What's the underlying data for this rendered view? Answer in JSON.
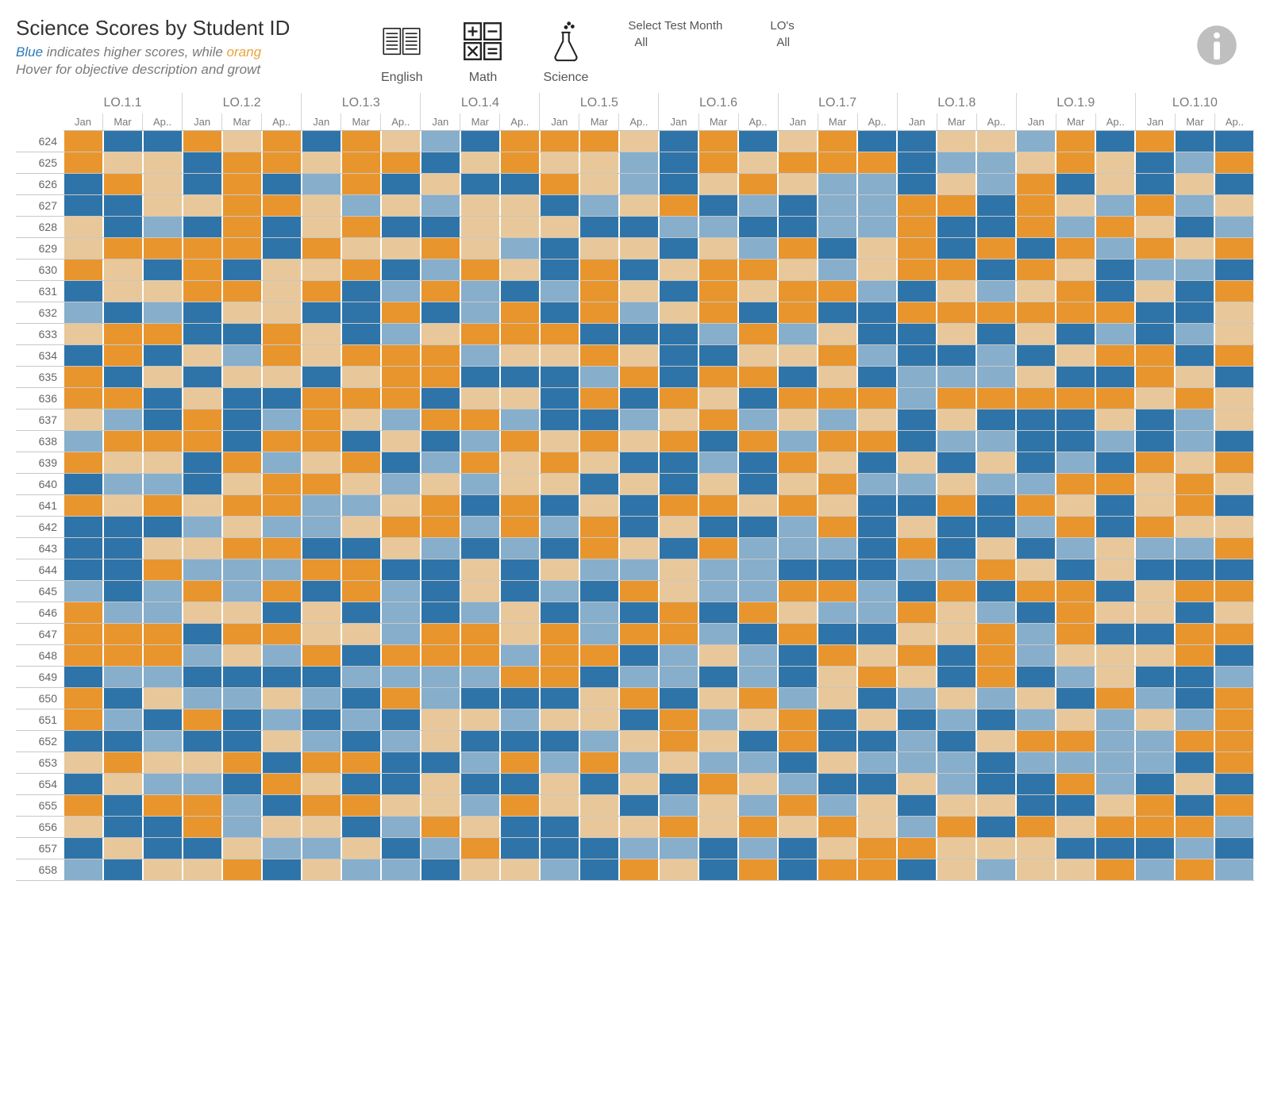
{
  "title": "Science Scores by Student ID",
  "subtitle": {
    "blue_word": "Blue",
    "mid1": " indicates higher scores, while ",
    "orange_word": "orang",
    "line2": "Hover for objective description and growt"
  },
  "subjects": [
    {
      "key": "english",
      "label": "English"
    },
    {
      "key": "math",
      "label": "Math"
    },
    {
      "key": "science",
      "label": "Science"
    }
  ],
  "filters": {
    "month": {
      "label": "Select Test Month",
      "value": "All"
    },
    "lo": {
      "label": "LO's",
      "value": "All"
    }
  },
  "heatmap": {
    "type": "heatmap",
    "lo_columns": [
      "LO.1.1",
      "LO.1.2",
      "LO.1.3",
      "LO.1.4",
      "LO.1.5",
      "LO.1.6",
      "LO.1.7",
      "LO.1.8",
      "LO.1.9",
      "LO.1.10"
    ],
    "months": [
      "Jan",
      "Mar",
      "Ap.."
    ],
    "student_ids": [
      "624",
      "625",
      "626",
      "627",
      "628",
      "629",
      "630",
      "631",
      "632",
      "633",
      "634",
      "635",
      "636",
      "637",
      "638",
      "639",
      "640",
      "641",
      "642",
      "643",
      "644",
      "645",
      "646",
      "647",
      "648",
      "649",
      "650",
      "651",
      "652",
      "653",
      "654",
      "655",
      "656",
      "657",
      "658"
    ],
    "palette": {
      "0": "#e8c89a",
      "1": "#e8952e",
      "2": "#87aecb",
      "3": "#2e74a8"
    },
    "background_color": "#ffffff",
    "grid_line_color": "#c8c8c8",
    "label_color": "#7a7a7a",
    "label_fontsize": 14,
    "cell_border_color": "#ffffff",
    "values": [
      [
        1,
        3,
        3,
        1,
        0,
        1,
        3,
        1,
        0,
        2,
        3,
        1,
        1,
        1,
        0,
        3,
        1,
        3,
        0,
        1,
        3,
        3,
        0,
        0,
        2,
        1,
        3,
        1,
        3,
        3
      ],
      [
        1,
        0,
        0,
        3,
        1,
        1,
        0,
        1,
        1,
        3,
        0,
        1,
        0,
        0,
        2,
        3,
        1,
        0,
        1,
        1,
        1,
        3,
        2,
        2,
        0,
        1,
        0,
        3,
        2,
        1
      ],
      [
        3,
        1,
        0,
        3,
        1,
        3,
        2,
        1,
        3,
        0,
        3,
        3,
        1,
        0,
        2,
        3,
        0,
        1,
        0,
        2,
        2,
        3,
        0,
        2,
        1,
        3,
        0,
        3,
        0,
        3
      ],
      [
        3,
        3,
        0,
        0,
        1,
        1,
        0,
        2,
        0,
        2,
        0,
        0,
        3,
        2,
        0,
        1,
        3,
        2,
        3,
        2,
        2,
        1,
        1,
        3,
        1,
        0,
        2,
        1,
        2,
        0
      ],
      [
        0,
        3,
        2,
        3,
        1,
        3,
        0,
        1,
        3,
        3,
        0,
        0,
        0,
        3,
        3,
        2,
        2,
        3,
        3,
        2,
        2,
        1,
        3,
        3,
        1,
        2,
        1,
        0,
        3,
        2
      ],
      [
        0,
        1,
        1,
        1,
        1,
        3,
        1,
        0,
        0,
        1,
        0,
        2,
        3,
        0,
        0,
        3,
        0,
        2,
        1,
        3,
        0,
        1,
        3,
        1,
        3,
        1,
        2,
        1,
        0,
        1
      ],
      [
        1,
        0,
        3,
        1,
        3,
        0,
        0,
        1,
        3,
        2,
        1,
        0,
        3,
        1,
        3,
        0,
        1,
        1,
        0,
        2,
        0,
        1,
        1,
        3,
        1,
        0,
        3,
        2,
        2,
        3
      ],
      [
        3,
        0,
        0,
        1,
        1,
        0,
        1,
        3,
        2,
        1,
        2,
        3,
        2,
        1,
        0,
        3,
        1,
        0,
        1,
        1,
        2,
        3,
        0,
        2,
        0,
        1,
        3,
        0,
        3,
        1
      ],
      [
        2,
        3,
        2,
        3,
        0,
        0,
        3,
        3,
        1,
        3,
        2,
        1,
        3,
        1,
        2,
        0,
        1,
        3,
        1,
        3,
        3,
        1,
        1,
        1,
        1,
        1,
        1,
        3,
        3,
        0
      ],
      [
        0,
        1,
        1,
        3,
        3,
        1,
        0,
        3,
        2,
        0,
        1,
        1,
        1,
        3,
        3,
        3,
        2,
        1,
        2,
        0,
        3,
        3,
        0,
        3,
        0,
        3,
        2,
        3,
        2,
        0
      ],
      [
        3,
        1,
        3,
        0,
        2,
        1,
        0,
        1,
        1,
        1,
        2,
        0,
        0,
        1,
        0,
        3,
        3,
        0,
        0,
        1,
        2,
        3,
        3,
        2,
        3,
        0,
        1,
        1,
        3,
        1
      ],
      [
        1,
        3,
        0,
        3,
        0,
        0,
        3,
        0,
        1,
        1,
        3,
        3,
        3,
        2,
        1,
        3,
        1,
        1,
        3,
        0,
        3,
        2,
        2,
        2,
        0,
        3,
        3,
        1,
        0,
        3
      ],
      [
        1,
        1,
        3,
        0,
        3,
        3,
        1,
        1,
        1,
        3,
        0,
        0,
        3,
        1,
        3,
        1,
        0,
        3,
        1,
        1,
        1,
        2,
        1,
        1,
        1,
        1,
        1,
        0,
        1,
        0
      ],
      [
        0,
        2,
        3,
        1,
        3,
        2,
        1,
        0,
        2,
        1,
        1,
        2,
        3,
        3,
        2,
        0,
        1,
        2,
        0,
        2,
        0,
        3,
        0,
        3,
        3,
        3,
        0,
        3,
        2,
        0
      ],
      [
        2,
        1,
        1,
        1,
        3,
        1,
        1,
        3,
        0,
        3,
        2,
        1,
        0,
        1,
        0,
        1,
        3,
        1,
        2,
        1,
        1,
        3,
        2,
        2,
        3,
        3,
        2,
        3,
        2,
        3
      ],
      [
        1,
        0,
        0,
        3,
        1,
        2,
        0,
        1,
        3,
        2,
        1,
        0,
        1,
        0,
        3,
        3,
        2,
        3,
        1,
        0,
        3,
        0,
        3,
        0,
        3,
        2,
        3,
        1,
        0,
        1
      ],
      [
        3,
        2,
        2,
        3,
        0,
        1,
        1,
        0,
        2,
        0,
        2,
        0,
        0,
        3,
        0,
        3,
        0,
        3,
        0,
        1,
        2,
        2,
        0,
        2,
        2,
        1,
        1,
        0,
        1,
        0
      ],
      [
        1,
        0,
        1,
        0,
        1,
        1,
        2,
        2,
        0,
        1,
        3,
        1,
        3,
        0,
        3,
        1,
        1,
        0,
        1,
        0,
        3,
        3,
        1,
        3,
        1,
        0,
        3,
        0,
        1,
        3
      ],
      [
        3,
        3,
        3,
        2,
        0,
        2,
        2,
        0,
        1,
        1,
        2,
        1,
        2,
        1,
        3,
        0,
        3,
        3,
        2,
        1,
        3,
        0,
        3,
        3,
        2,
        1,
        3,
        1,
        0,
        0
      ],
      [
        3,
        3,
        0,
        0,
        1,
        1,
        3,
        3,
        0,
        2,
        3,
        2,
        3,
        1,
        0,
        3,
        1,
        2,
        2,
        2,
        3,
        1,
        3,
        0,
        3,
        2,
        0,
        2,
        2,
        1
      ],
      [
        3,
        3,
        1,
        2,
        2,
        2,
        1,
        1,
        3,
        3,
        0,
        3,
        0,
        2,
        2,
        0,
        2,
        2,
        3,
        3,
        3,
        2,
        2,
        1,
        0,
        3,
        0,
        3,
        3,
        3
      ],
      [
        2,
        3,
        2,
        1,
        2,
        1,
        3,
        1,
        2,
        3,
        0,
        3,
        2,
        3,
        1,
        0,
        2,
        2,
        1,
        1,
        2,
        3,
        1,
        3,
        1,
        1,
        3,
        0,
        1,
        1
      ],
      [
        1,
        2,
        2,
        0,
        0,
        3,
        0,
        3,
        2,
        3,
        2,
        0,
        3,
        2,
        3,
        1,
        3,
        1,
        0,
        2,
        2,
        1,
        0,
        2,
        3,
        1,
        0,
        0,
        3,
        0
      ],
      [
        1,
        1,
        1,
        3,
        1,
        1,
        0,
        0,
        2,
        1,
        1,
        0,
        1,
        2,
        1,
        1,
        2,
        3,
        1,
        3,
        3,
        0,
        0,
        1,
        2,
        1,
        3,
        3,
        1,
        1
      ],
      [
        1,
        1,
        1,
        2,
        0,
        2,
        1,
        3,
        1,
        1,
        1,
        2,
        1,
        1,
        3,
        2,
        0,
        2,
        3,
        1,
        0,
        1,
        3,
        1,
        2,
        0,
        0,
        0,
        1,
        3
      ],
      [
        3,
        2,
        2,
        3,
        3,
        3,
        3,
        2,
        2,
        2,
        2,
        1,
        1,
        3,
        2,
        2,
        3,
        2,
        3,
        0,
        1,
        0,
        3,
        1,
        3,
        2,
        0,
        3,
        3,
        2
      ],
      [
        1,
        3,
        0,
        2,
        2,
        0,
        2,
        3,
        1,
        2,
        3,
        3,
        3,
        0,
        1,
        3,
        0,
        1,
        2,
        0,
        3,
        2,
        0,
        2,
        0,
        3,
        1,
        2,
        3,
        1
      ],
      [
        1,
        2,
        3,
        1,
        3,
        2,
        3,
        2,
        3,
        0,
        0,
        2,
        0,
        0,
        3,
        1,
        2,
        0,
        1,
        3,
        0,
        3,
        2,
        3,
        2,
        0,
        2,
        0,
        2,
        1
      ],
      [
        3,
        3,
        2,
        3,
        3,
        0,
        2,
        3,
        2,
        0,
        3,
        3,
        3,
        2,
        0,
        1,
        0,
        3,
        1,
        3,
        3,
        2,
        3,
        0,
        1,
        1,
        2,
        2,
        1,
        1
      ],
      [
        0,
        1,
        0,
        0,
        1,
        3,
        1,
        1,
        3,
        3,
        2,
        1,
        2,
        1,
        2,
        0,
        2,
        2,
        3,
        0,
        2,
        2,
        2,
        3,
        2,
        2,
        2,
        2,
        3,
        1
      ],
      [
        3,
        0,
        2,
        2,
        3,
        1,
        0,
        3,
        3,
        0,
        3,
        3,
        0,
        3,
        0,
        3,
        1,
        0,
        2,
        3,
        3,
        0,
        2,
        3,
        3,
        1,
        2,
        3,
        0,
        3
      ],
      [
        1,
        3,
        1,
        1,
        2,
        3,
        1,
        1,
        0,
        0,
        2,
        1,
        0,
        0,
        3,
        2,
        0,
        2,
        1,
        2,
        0,
        3,
        0,
        0,
        3,
        3,
        0,
        1,
        3,
        1
      ],
      [
        0,
        3,
        3,
        1,
        2,
        0,
        0,
        3,
        2,
        1,
        0,
        3,
        3,
        0,
        0,
        1,
        0,
        1,
        0,
        1,
        0,
        2,
        1,
        3,
        1,
        0,
        1,
        1,
        1,
        2
      ],
      [
        3,
        0,
        3,
        3,
        0,
        2,
        2,
        0,
        3,
        2,
        1,
        3,
        3,
        3,
        2,
        2,
        3,
        2,
        3,
        0,
        1,
        1,
        0,
        0,
        0,
        3,
        3,
        3,
        2,
        3
      ],
      [
        2,
        3,
        0,
        0,
        1,
        3,
        0,
        2,
        2,
        3,
        0,
        0,
        2,
        3,
        1,
        0,
        3,
        1,
        3,
        1,
        1,
        3,
        0,
        2,
        0,
        0,
        1,
        2,
        1,
        2
      ]
    ]
  }
}
